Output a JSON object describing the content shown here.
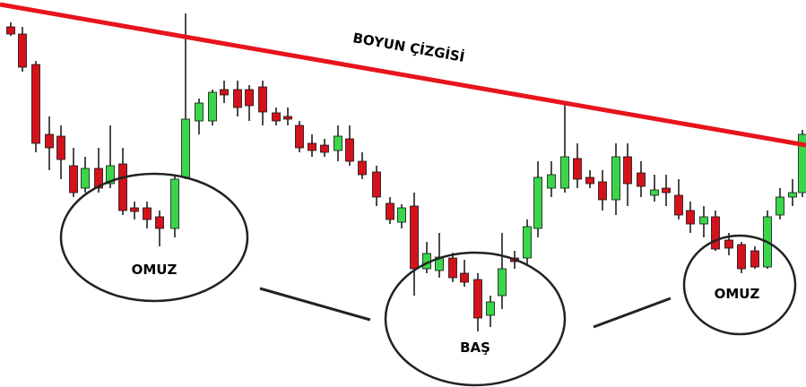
{
  "annotations": {
    "neckline": "BOYUN ÇİZGİSİ",
    "left_shoulder": "OMUZ",
    "head": "BAŞ",
    "right_shoulder": "OMUZ"
  }
}
